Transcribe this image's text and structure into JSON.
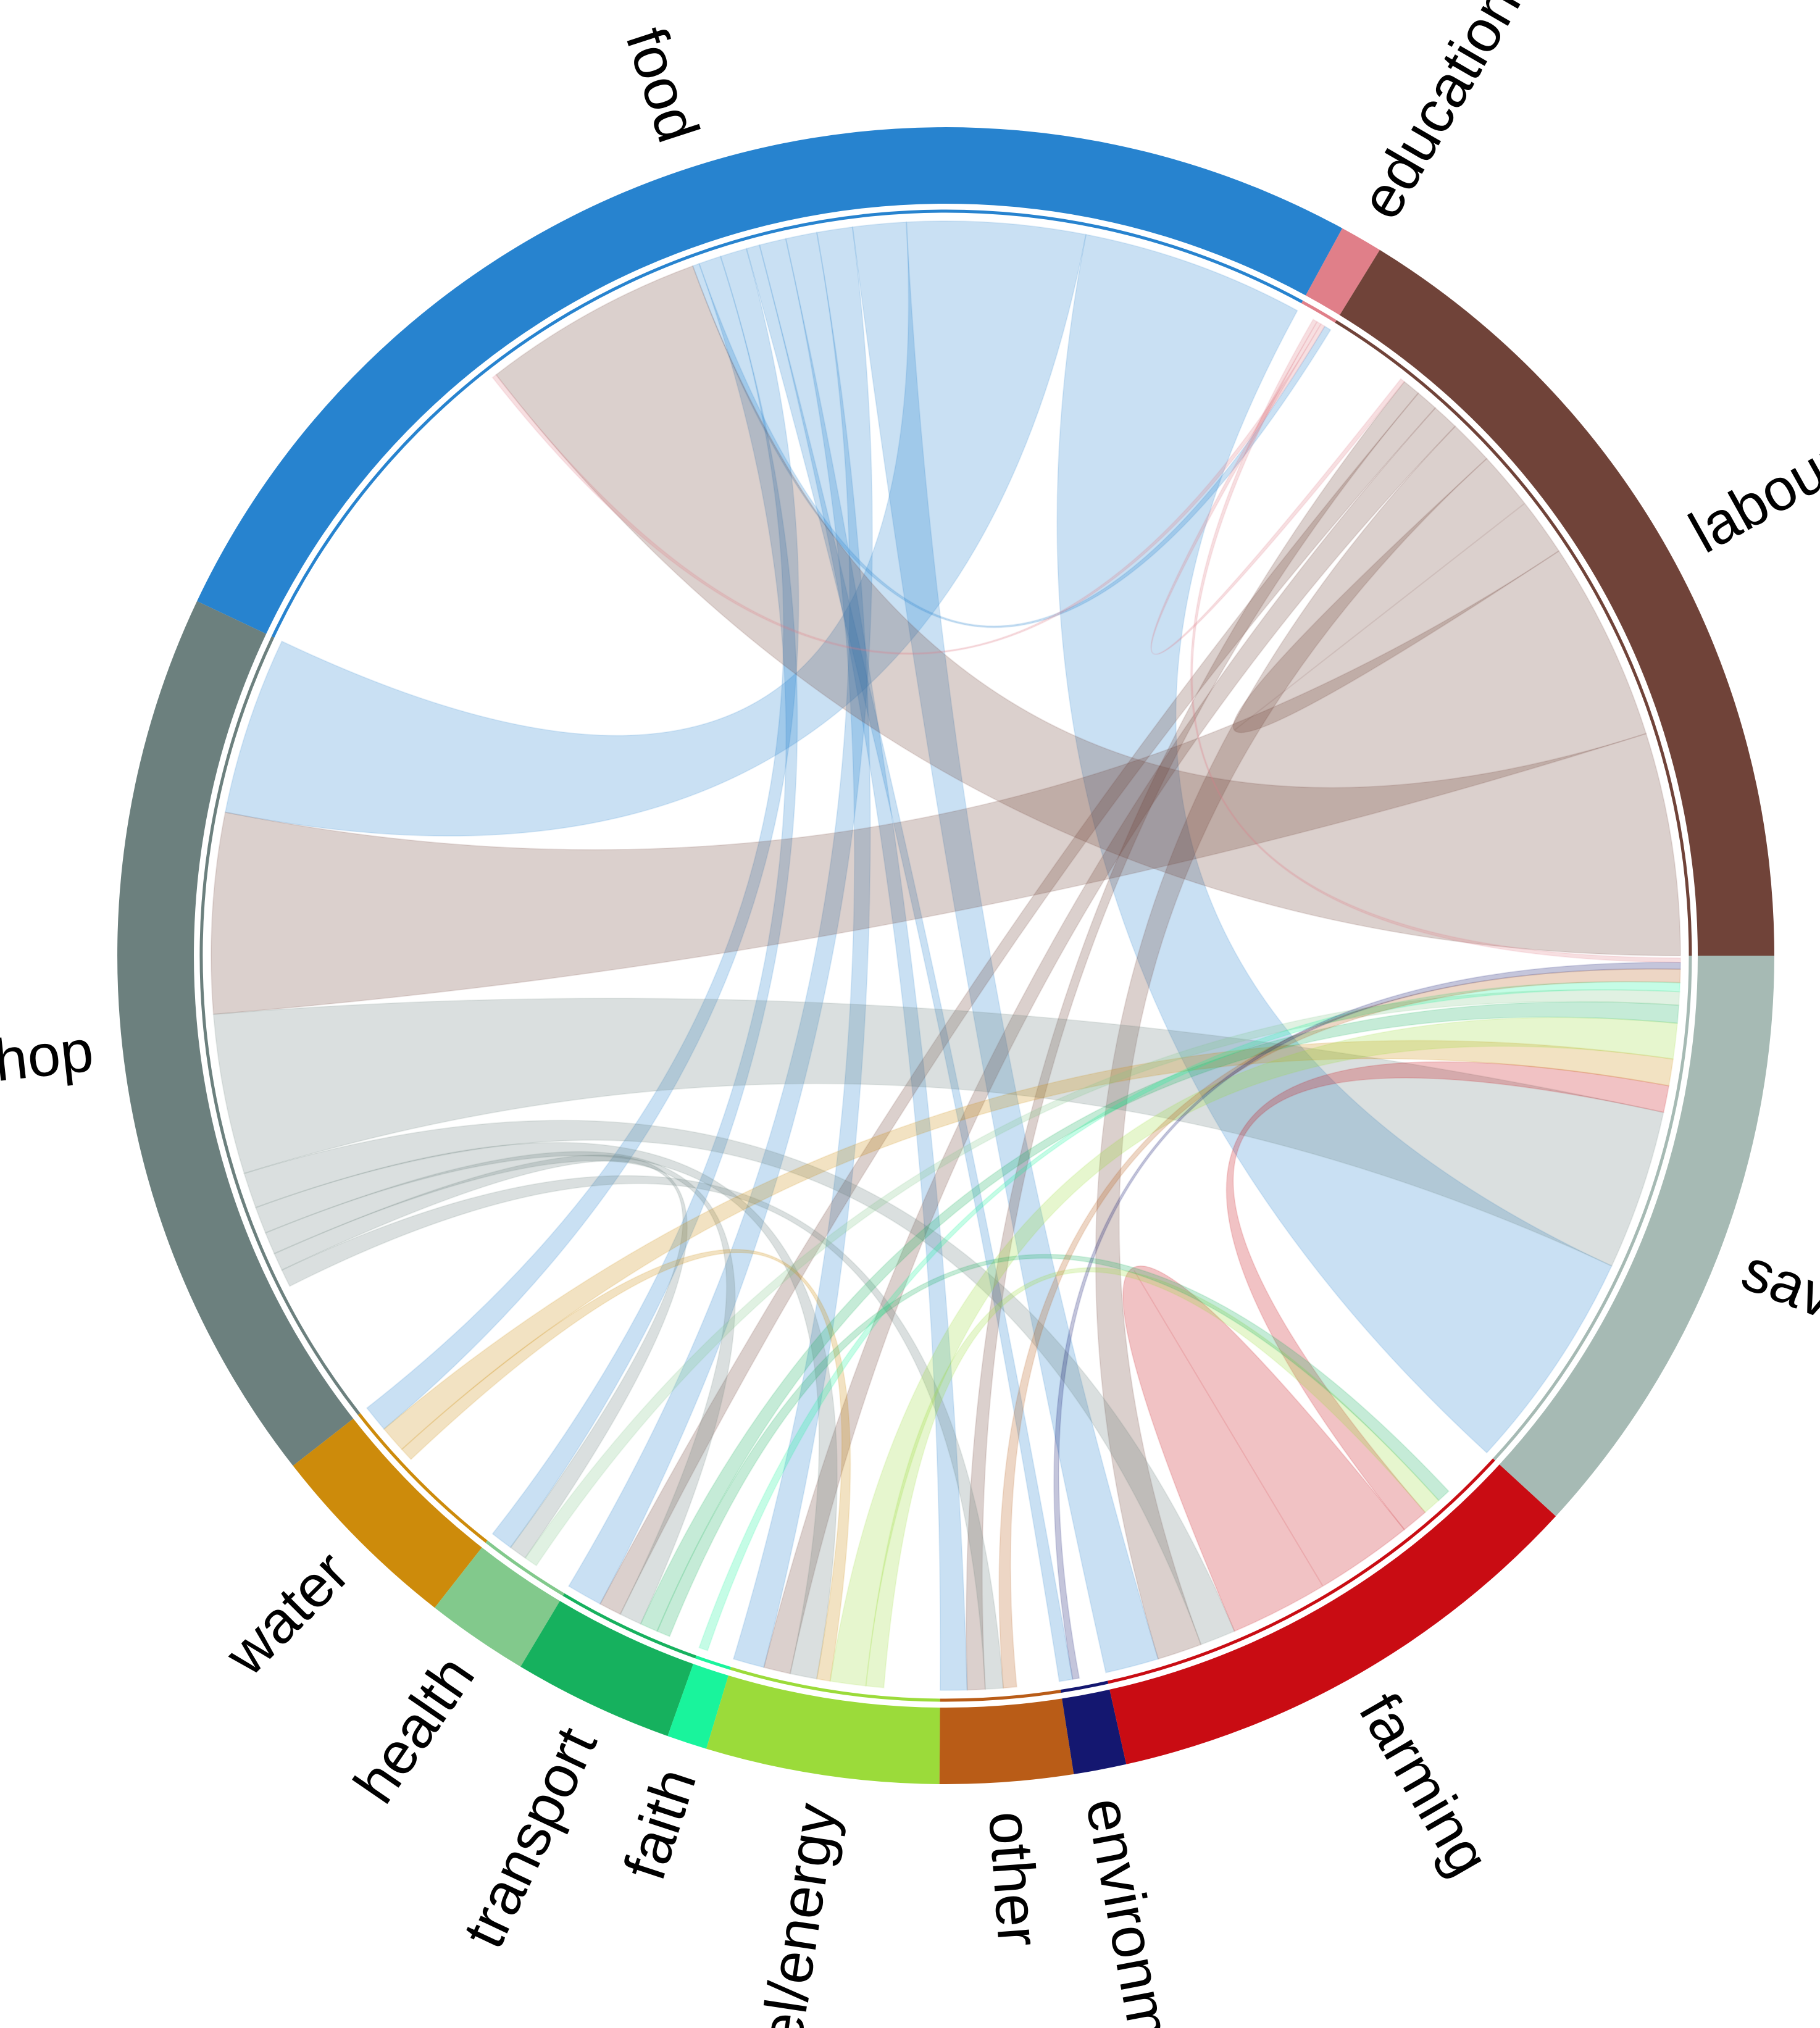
{
  "chart_data": {
    "type": "chord",
    "groups": [
      {
        "name": "labour",
        "color": "#704339",
        "share": 16.6
      },
      {
        "name": "education",
        "color": "#E07F89",
        "share": 0.85
      },
      {
        "name": "food",
        "color": "#2783CF",
        "share": 26.5
      },
      {
        "name": "shop",
        "color": "#6C807E",
        "share": 18.0
      },
      {
        "name": "water",
        "color": "#CD8B0B",
        "share": 3.95
      },
      {
        "name": "health",
        "color": "#82C98C",
        "share": 2.05
      },
      {
        "name": "transport",
        "color": "#16B15E",
        "share": 3.2
      },
      {
        "name": "faith",
        "color": "#19F49C",
        "share": 0.8
      },
      {
        "name": "fuel/energy",
        "color": "#9BDB3A",
        "share": 4.65
      },
      {
        "name": "other",
        "color": "#B95C17",
        "share": 2.65
      },
      {
        "name": "environment",
        "color": "#141770",
        "share": 1.05
      },
      {
        "name": "farming",
        "color": "#C90C13",
        "share": 9.9
      },
      {
        "name": "savings",
        "color": "#A6BAB4",
        "share": 12.1
      }
    ],
    "links": [
      {
        "source": "food",
        "target": "savings",
        "value": 5.0
      },
      {
        "source": "food",
        "target": "shop",
        "value": 4.0
      },
      {
        "source": "food",
        "target": "farming",
        "value": 1.2
      },
      {
        "source": "food",
        "target": "transport",
        "value": 0.8
      },
      {
        "source": "food",
        "target": "fuel/energy",
        "value": 0.7
      },
      {
        "source": "food",
        "target": "other",
        "value": 0.6
      },
      {
        "source": "food",
        "target": "environment",
        "value": 0.3
      },
      {
        "source": "food",
        "target": "water",
        "value": 0.6
      },
      {
        "source": "food",
        "target": "health",
        "value": 0.5
      },
      {
        "source": "food",
        "target": "education",
        "value": 0.15
      },
      {
        "source": "labour",
        "target": "food",
        "value": 5.0
      },
      {
        "source": "labour",
        "target": "shop",
        "value": 4.5
      },
      {
        "source": "labour",
        "target": "labour",
        "value": 1.3
      },
      {
        "source": "labour",
        "target": "farming",
        "value": 1.0
      },
      {
        "source": "labour",
        "target": "fuel/energy",
        "value": 0.6
      },
      {
        "source": "labour",
        "target": "transport",
        "value": 0.5
      },
      {
        "source": "labour",
        "target": "other",
        "value": 0.4
      },
      {
        "source": "shop",
        "target": "savings",
        "value": 3.6
      },
      {
        "source": "shop",
        "target": "farming",
        "value": 0.8
      },
      {
        "source": "shop",
        "target": "fuel/energy",
        "value": 0.6
      },
      {
        "source": "shop",
        "target": "transport",
        "value": 0.5
      },
      {
        "source": "shop",
        "target": "health",
        "value": 0.4
      },
      {
        "source": "shop",
        "target": "other",
        "value": 0.4
      },
      {
        "source": "farming",
        "target": "farming",
        "value": 2.2
      },
      {
        "source": "farming",
        "target": "savings",
        "value": 0.6
      },
      {
        "source": "water",
        "target": "savings",
        "value": 0.6
      },
      {
        "source": "water",
        "target": "fuel/energy",
        "value": 0.3
      },
      {
        "source": "fuel/energy",
        "target": "savings",
        "value": 0.8
      },
      {
        "source": "fuel/energy",
        "target": "farming",
        "value": 0.4
      },
      {
        "source": "transport",
        "target": "savings",
        "value": 0.4
      },
      {
        "source": "transport",
        "target": "farming",
        "value": 0.3
      },
      {
        "source": "health",
        "target": "savings",
        "value": 0.3
      },
      {
        "source": "faith",
        "target": "savings",
        "value": 0.2
      },
      {
        "source": "other",
        "target": "savings",
        "value": 0.3
      },
      {
        "source": "environment",
        "target": "savings",
        "value": 0.15
      },
      {
        "source": "education",
        "target": "food",
        "value": 0.1
      },
      {
        "source": "education",
        "target": "labour",
        "value": 0.1
      },
      {
        "source": "education",
        "target": "savings",
        "value": 0.1
      }
    ],
    "direction": "counterclockwise",
    "start": "east"
  }
}
